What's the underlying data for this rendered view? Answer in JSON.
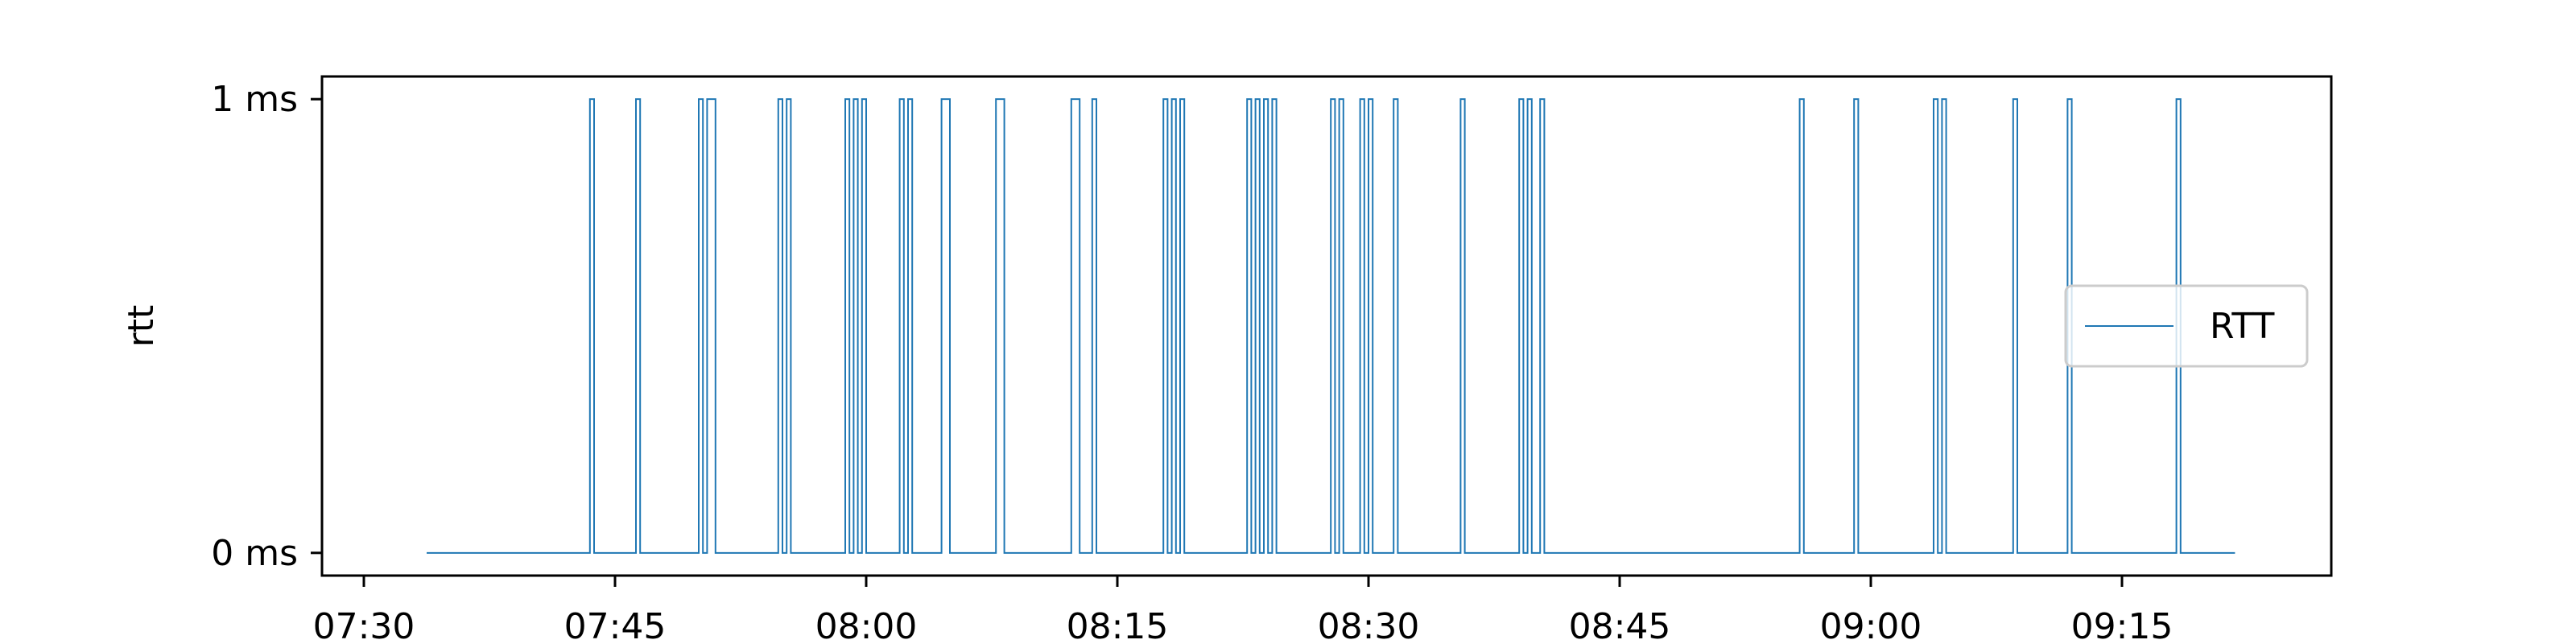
{
  "chart_data": {
    "type": "line",
    "ylabel": "rtt",
    "xlim": [
      "07:27:30",
      "09:27:30"
    ],
    "ylim": [
      -0.05,
      1.05
    ],
    "x_ticks": [
      "07:30",
      "07:45",
      "08:00",
      "08:15",
      "08:30",
      "08:45",
      "09:00",
      "09:15"
    ],
    "y_ticks": [
      {
        "value": 0,
        "label": "0 ms"
      },
      {
        "value": 1,
        "label": "1 ms"
      }
    ],
    "legend": {
      "position": "center-right",
      "entries": [
        "RTT"
      ]
    },
    "grid": false,
    "line_color": "#1f77b4",
    "series": [
      {
        "name": "RTT",
        "start": "07:33:45",
        "end": "09:21:45",
        "baseline": 0,
        "spike_value": 1,
        "spikes": [
          [
            "07:43:30",
            "07:43:45"
          ],
          [
            "07:46:15",
            "07:46:30"
          ],
          [
            "07:50:00",
            "07:50:15"
          ],
          [
            "07:50:30",
            "07:51:00"
          ],
          [
            "07:54:45",
            "07:55:00"
          ],
          [
            "07:55:15",
            "07:55:30"
          ],
          [
            "07:58:45",
            "07:59:00"
          ],
          [
            "07:59:15",
            "07:59:30"
          ],
          [
            "07:59:45",
            "08:00:00"
          ],
          [
            "08:02:00",
            "08:02:15"
          ],
          [
            "08:02:30",
            "08:02:45"
          ],
          [
            "08:04:30",
            "08:05:00"
          ],
          [
            "08:07:45",
            "08:08:15"
          ],
          [
            "08:12:15",
            "08:12:45"
          ],
          [
            "08:13:30",
            "08:13:45"
          ],
          [
            "08:17:45",
            "08:18:00"
          ],
          [
            "08:18:15",
            "08:18:30"
          ],
          [
            "08:18:45",
            "08:19:00"
          ],
          [
            "08:22:45",
            "08:23:00"
          ],
          [
            "08:23:15",
            "08:23:30"
          ],
          [
            "08:23:45",
            "08:24:00"
          ],
          [
            "08:24:15",
            "08:24:30"
          ],
          [
            "08:27:45",
            "08:28:00"
          ],
          [
            "08:28:15",
            "08:28:30"
          ],
          [
            "08:29:30",
            "08:29:45"
          ],
          [
            "08:30:00",
            "08:30:15"
          ],
          [
            "08:31:30",
            "08:31:45"
          ],
          [
            "08:35:30",
            "08:35:45"
          ],
          [
            "08:39:00",
            "08:39:15"
          ],
          [
            "08:39:30",
            "08:39:45"
          ],
          [
            "08:40:15",
            "08:40:30"
          ],
          [
            "08:55:45",
            "08:56:00"
          ],
          [
            "08:59:00",
            "08:59:15"
          ],
          [
            "09:03:45",
            "09:04:00"
          ],
          [
            "09:04:15",
            "09:04:30"
          ],
          [
            "09:08:30",
            "09:08:45"
          ],
          [
            "09:11:45",
            "09:12:00"
          ],
          [
            "09:18:15",
            "09:18:30"
          ]
        ]
      }
    ]
  }
}
